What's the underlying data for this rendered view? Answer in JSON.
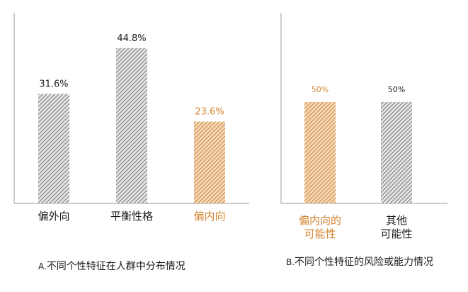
{
  "colors": {
    "gray": "#8c8c8c",
    "orange": "#d4822e",
    "text": "#1a1a1a",
    "axis": "#9a9a9a"
  },
  "chart_data": [
    {
      "type": "bar",
      "categories": [
        "偏外向",
        "平衡性格",
        "偏内向"
      ],
      "values": [
        31.6,
        44.8,
        23.6
      ],
      "value_labels": [
        "31.6%",
        "44.8%",
        "23.6%"
      ],
      "highlight_index": 2,
      "caption_prefix": "A.",
      "caption": "不同个性特征在人群中分布情况",
      "ylim": [
        0,
        55
      ],
      "grid": false
    },
    {
      "type": "bar",
      "categories": [
        [
          "偏内向的",
          "可能性"
        ],
        [
          "其他",
          "可能性"
        ]
      ],
      "values": [
        50,
        50
      ],
      "value_labels": [
        "50%",
        "50%"
      ],
      "highlight_index": 0,
      "caption_prefix": "B.",
      "caption": "不同个性特征的风险或能力情况",
      "ylim": [
        0,
        94
      ],
      "grid": false
    }
  ]
}
